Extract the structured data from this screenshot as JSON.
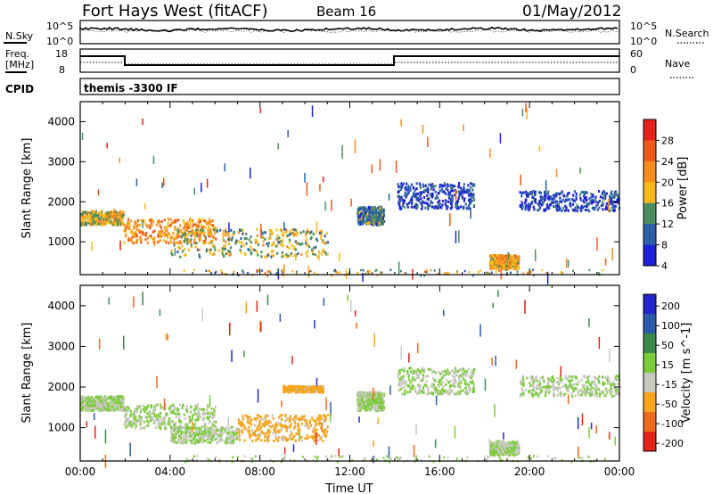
{
  "header": {
    "title": "Fort Hays West (fitACF)",
    "beam": "Beam 16",
    "date": "01/May/2012"
  },
  "top_panels": {
    "nsky_label": "N.Sky",
    "nsearch_label": "N.Search",
    "noise_ticks": [
      "10^5",
      "10^0"
    ],
    "freq_label_line1": "Freq.",
    "freq_label_line2": "[MHz]",
    "freq_ticks": [
      "18",
      "8"
    ],
    "nave_label": "Nave",
    "nave_ticks": [
      "60",
      "0"
    ],
    "cpid_label": "CPID",
    "cpid_value": "themis -3300 IF"
  },
  "chart_data": [
    {
      "type": "heatmap",
      "name": "power",
      "title": "",
      "xlabel": "",
      "ylabel": "Slant Range [km]",
      "xlim": [
        0,
        24
      ],
      "ylim": [
        180,
        4500
      ],
      "yticks": [
        "1000",
        "2000",
        "3000",
        "4000"
      ],
      "colorbar": {
        "label": "Power [dB]",
        "ticks": [
          "28",
          "24",
          "20",
          "16",
          "12",
          "8",
          "4"
        ],
        "colors": [
          "#e4231c",
          "#f0591c",
          "#f78c1f",
          "#f7b81c",
          "#4a8d5e",
          "#2a5fa7",
          "#1d21d8"
        ]
      },
      "features": [
        {
          "t0": 0.0,
          "t1": 1.9,
          "r0": 1450,
          "r1": 1800,
          "level": 16
        },
        {
          "t0": 1.9,
          "t1": 6.0,
          "r0": 1000,
          "r1": 1600,
          "level": 20
        },
        {
          "t0": 4.0,
          "t1": 11.0,
          "r0": 650,
          "r1": 1350,
          "level": 14
        },
        {
          "t0": 12.3,
          "t1": 13.5,
          "r0": 1450,
          "r1": 1900,
          "level": 10
        },
        {
          "t0": 14.1,
          "t1": 17.5,
          "r0": 1850,
          "r1": 2500,
          "level": 6
        },
        {
          "t0": 18.2,
          "t1": 19.5,
          "r0": 350,
          "r1": 700,
          "level": 18
        },
        {
          "t0": 19.5,
          "t1": 24.0,
          "r0": 1800,
          "r1": 2300,
          "level": 6
        }
      ]
    },
    {
      "type": "heatmap",
      "name": "velocity",
      "title": "",
      "xlabel": "Time UT",
      "ylabel": "Slant Range [km]",
      "xlim": [
        0,
        24
      ],
      "ylim": [
        180,
        4500
      ],
      "xticks": [
        "00:00",
        "04:00",
        "08:00",
        "12:00",
        "16:00",
        "20:00",
        "00:00"
      ],
      "yticks": [
        "1000",
        "2000",
        "3000",
        "4000"
      ],
      "colorbar": {
        "label": "Velocity [m s^-1]",
        "ticks": [
          "200",
          "100",
          "50",
          "15",
          "-15",
          "-50",
          "-100",
          "-200"
        ],
        "colors": [
          "#2127c8",
          "#2b5aa8",
          "#3a8a4a",
          "#7ccc3a",
          "#c8c8c0",
          "#f7a51c",
          "#f06a1c",
          "#e4231c"
        ]
      },
      "features": [
        {
          "t0": 0.0,
          "t1": 1.9,
          "r0": 1450,
          "r1": 1800,
          "level": 0
        },
        {
          "t0": 1.9,
          "t1": 6.0,
          "r0": 1000,
          "r1": 1600,
          "level": 0
        },
        {
          "t0": 4.0,
          "t1": 7.0,
          "r0": 650,
          "r1": 1050,
          "level": 0
        },
        {
          "t0": 7.0,
          "t1": 11.0,
          "r0": 700,
          "r1": 1350,
          "level": -40
        },
        {
          "t0": 9.0,
          "t1": 10.8,
          "r0": 1900,
          "r1": 2050,
          "level": -40
        },
        {
          "t0": 12.3,
          "t1": 13.5,
          "r0": 1450,
          "r1": 1900,
          "level": 0
        },
        {
          "t0": 14.1,
          "t1": 17.5,
          "r0": 1850,
          "r1": 2500,
          "level": 0
        },
        {
          "t0": 18.2,
          "t1": 19.5,
          "r0": 350,
          "r1": 700,
          "level": 0
        },
        {
          "t0": 19.5,
          "t1": 24.0,
          "r0": 1800,
          "r1": 2300,
          "level": 0
        }
      ]
    }
  ]
}
